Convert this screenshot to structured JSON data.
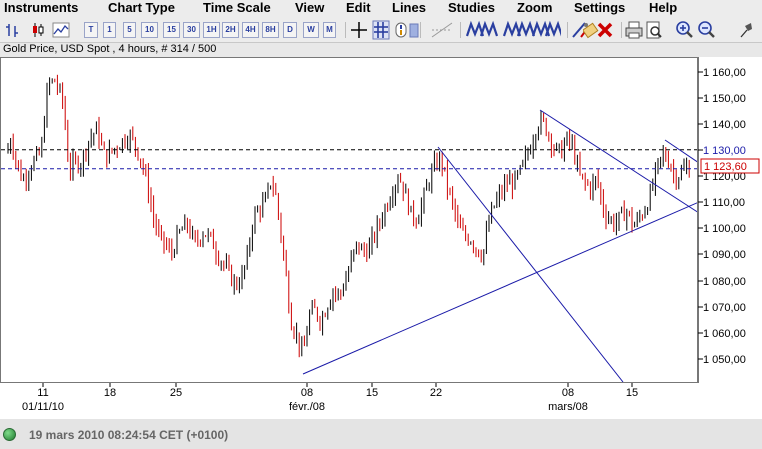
{
  "menu": [
    "Instruments",
    "Chart Type",
    "Time Scale",
    "View",
    "Edit",
    "Lines",
    "Studies",
    "Zoom",
    "Settings",
    "Help"
  ],
  "toolbar": {
    "timescale_buttons": [
      "T",
      "1",
      "5",
      "10",
      "15",
      "30",
      "1H",
      "2H",
      "4H",
      "8H",
      "D",
      "W",
      "M"
    ],
    "icons": [
      "bar-chart-icon",
      "candlestick-chart-icon",
      "line-chart-icon",
      "crosshair-icon",
      "grid-icon",
      "info-icon",
      "fill-icon",
      "draw-line-icon",
      "fibonacci-icon",
      "trend-channel-icon",
      "eraser-icon",
      "delete-lines-icon",
      "print-icon",
      "print-preview-icon",
      "zoom-in-icon",
      "zoom-out-icon",
      "pin-icon"
    ]
  },
  "chart_title": "Gold Price, USD Spot , 4 hours, # 314 / 500",
  "chart_data": {
    "type": "candlestick",
    "ylim": [
      1040,
      1167
    ],
    "y_ticks": [
      "1 160,00",
      "1 150,00",
      "1 140,00",
      "1 130,00",
      "1 120,00",
      "1 110,00",
      "1 100,00",
      "1 090,00",
      "1 080,00",
      "1 070,00",
      "1 060,00",
      "1 050,00"
    ],
    "highlighted_tick": "1 130,00",
    "current_price_label": "1 123,60",
    "x_ticks": [
      {
        "day": "11",
        "sub": "01/11/10"
      },
      {
        "day": "18",
        "sub": ""
      },
      {
        "day": "25",
        "sub": ""
      },
      {
        "day": "08",
        "sub": "févr./08"
      },
      {
        "day": "15",
        "sub": ""
      },
      {
        "day": "22",
        "sub": ""
      },
      {
        "day": "08",
        "sub": "mars/08"
      },
      {
        "day": "15",
        "sub": ""
      }
    ],
    "reference_lines": [
      {
        "style": "dashed",
        "price": 1131,
        "color": "#000000"
      },
      {
        "style": "dashed",
        "price": 1123.6,
        "color": "#1a1aa8"
      }
    ],
    "colors": {
      "up": "#000000",
      "down": "#cc0000",
      "trend": "#1a1aa8",
      "highlight": "#1a1aa8",
      "current": "#cc0000"
    }
  },
  "status": {
    "datetime": "19 mars 2010 08:24:54",
    "timezone": "CET (+0100)"
  }
}
